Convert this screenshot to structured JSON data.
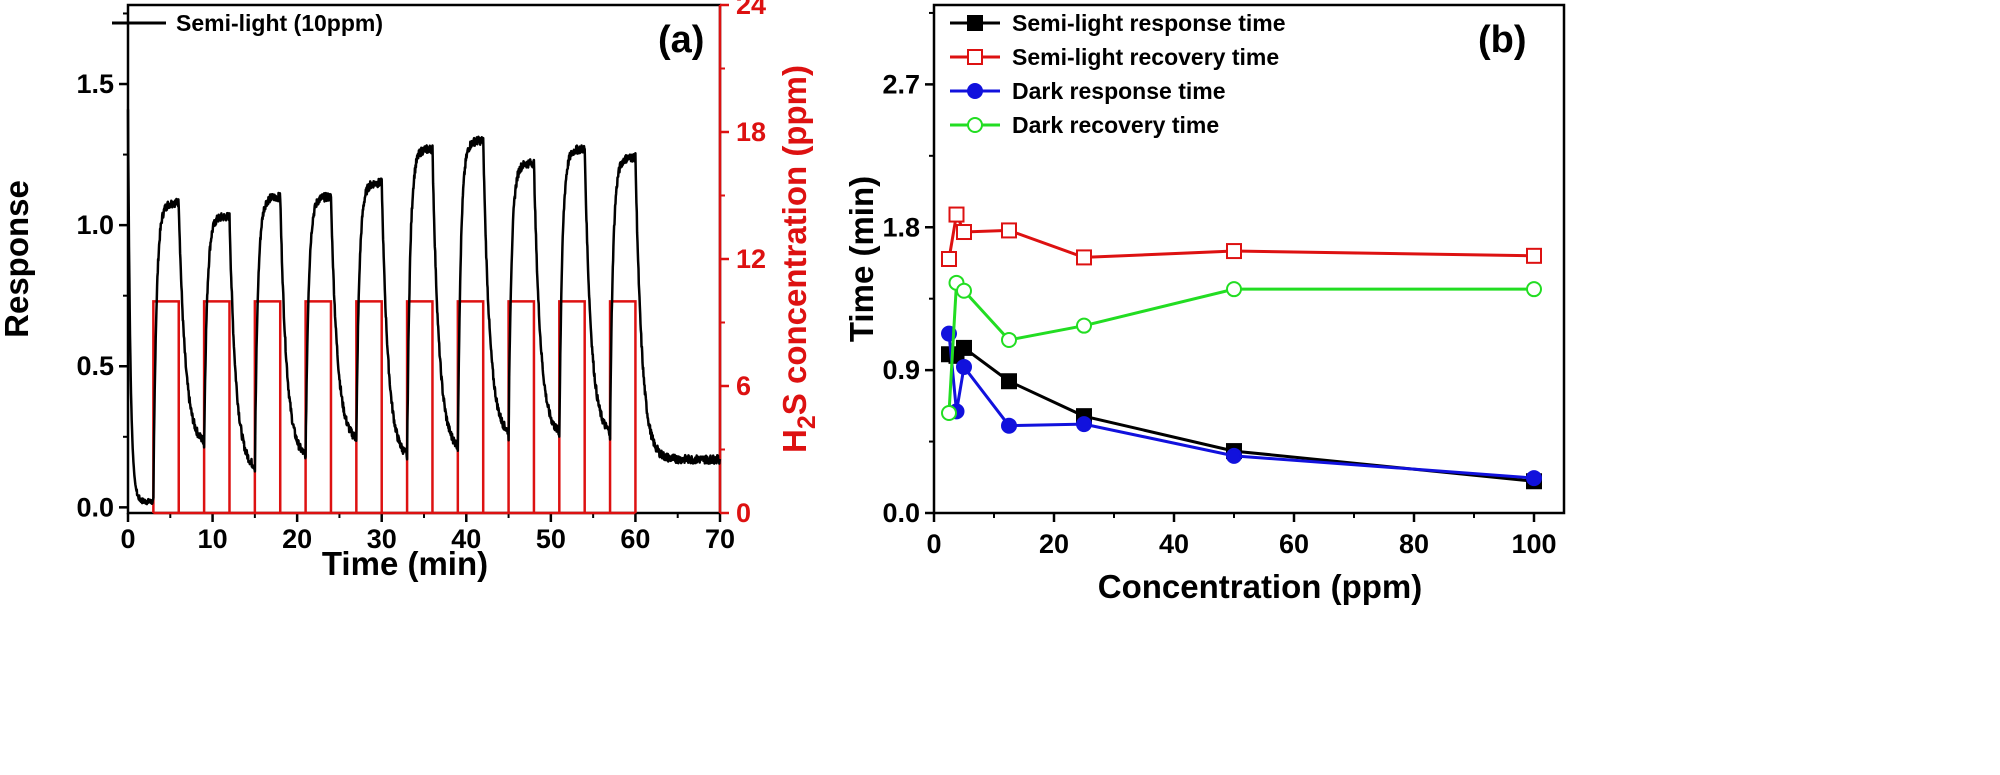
{
  "chart_data": [
    {
      "type": "line",
      "panel_label": "(a)",
      "xlabel": "Time (min)",
      "ylabel": "Response",
      "y2label": {
        "prefix": "H",
        "sub": "2",
        "suffix": "S concentration (ppm)"
      },
      "xlim": [
        0,
        70
      ],
      "ylim": [
        -0.02,
        1.78
      ],
      "y2lim": [
        0,
        24
      ],
      "x_ticks": [
        "0",
        "10",
        "20",
        "30",
        "40",
        "50",
        "60",
        "70"
      ],
      "y_ticks": [
        "0.0",
        "0.5",
        "1.0",
        "1.5"
      ],
      "y2_ticks": [
        "0",
        "6",
        "12",
        "18",
        "24"
      ],
      "legend": {
        "position": "top-left",
        "entries": [
          "Semi-light (10ppm)"
        ]
      },
      "response_series": {
        "name": "Semi-light (10ppm)",
        "color": "#000000",
        "initial_peak": 1.41,
        "baseline": 0.02,
        "cycles": [
          {
            "on": 3,
            "off": 6,
            "peak": 1.08,
            "min_after": 0.22
          },
          {
            "on": 9,
            "off": 12,
            "peak": 1.03,
            "min_after": 0.13
          },
          {
            "on": 15,
            "off": 18,
            "peak": 1.1,
            "min_after": 0.17
          },
          {
            "on": 21,
            "off": 24,
            "peak": 1.1,
            "min_after": 0.23
          },
          {
            "on": 27,
            "off": 30,
            "peak": 1.15,
            "min_after": 0.17
          },
          {
            "on": 33,
            "off": 36,
            "peak": 1.27,
            "min_after": 0.2
          },
          {
            "on": 39,
            "off": 42,
            "peak": 1.3,
            "min_after": 0.25
          },
          {
            "on": 45,
            "off": 48,
            "peak": 1.22,
            "min_after": 0.25
          },
          {
            "on": 51,
            "off": 54,
            "peak": 1.27,
            "min_after": 0.25
          },
          {
            "on": 57,
            "off": 60,
            "peak": 1.24,
            "min_after": 0.17
          }
        ]
      },
      "concentration_series": {
        "name": "H2S concentration",
        "color": "#dd1111",
        "level_ppm": 10,
        "pulses": [
          [
            3,
            6
          ],
          [
            9,
            12
          ],
          [
            15,
            18
          ],
          [
            21,
            24
          ],
          [
            27,
            30
          ],
          [
            33,
            36
          ],
          [
            39,
            42
          ],
          [
            45,
            48
          ],
          [
            51,
            54
          ],
          [
            57,
            60
          ]
        ]
      }
    },
    {
      "type": "line",
      "panel_label": "(b)",
      "xlabel": "Concentration (ppm)",
      "ylabel": "Time (min)",
      "xlim": [
        0,
        105
      ],
      "ylim": [
        0,
        3.2
      ],
      "x_ticks": [
        "0",
        "20",
        "40",
        "60",
        "80",
        "100"
      ],
      "y_ticks": [
        "0.0",
        "0.9",
        "1.8",
        "2.7"
      ],
      "legend": {
        "position": "top-left"
      },
      "series": [
        {
          "name": "Semi-light response time",
          "color": "#000000",
          "marker": "square-filled",
          "x": [
            2.5,
            3.75,
            5,
            12.5,
            25,
            50,
            100
          ],
          "y": [
            1.0,
            0.99,
            1.04,
            0.83,
            0.61,
            0.39,
            0.2
          ]
        },
        {
          "name": "Semi-light recovery time",
          "color": "#dd1111",
          "marker": "square-open",
          "x": [
            2.5,
            3.75,
            5,
            12.5,
            25,
            50,
            100
          ],
          "y": [
            1.6,
            1.88,
            1.77,
            1.78,
            1.61,
            1.65,
            1.62
          ]
        },
        {
          "name": "Dark response time",
          "color": "#1111dd",
          "marker": "circle-filled",
          "x": [
            2.5,
            3.75,
            5,
            12.5,
            25,
            50,
            100
          ],
          "y": [
            1.13,
            0.64,
            0.92,
            0.55,
            0.56,
            0.36,
            0.22
          ]
        },
        {
          "name": "Dark recovery time",
          "color": "#22dd22",
          "marker": "circle-open",
          "x": [
            2.5,
            3.75,
            5,
            12.5,
            25,
            50,
            100
          ],
          "y": [
            0.63,
            1.45,
            1.4,
            1.09,
            1.18,
            1.41,
            1.41
          ]
        }
      ]
    }
  ]
}
